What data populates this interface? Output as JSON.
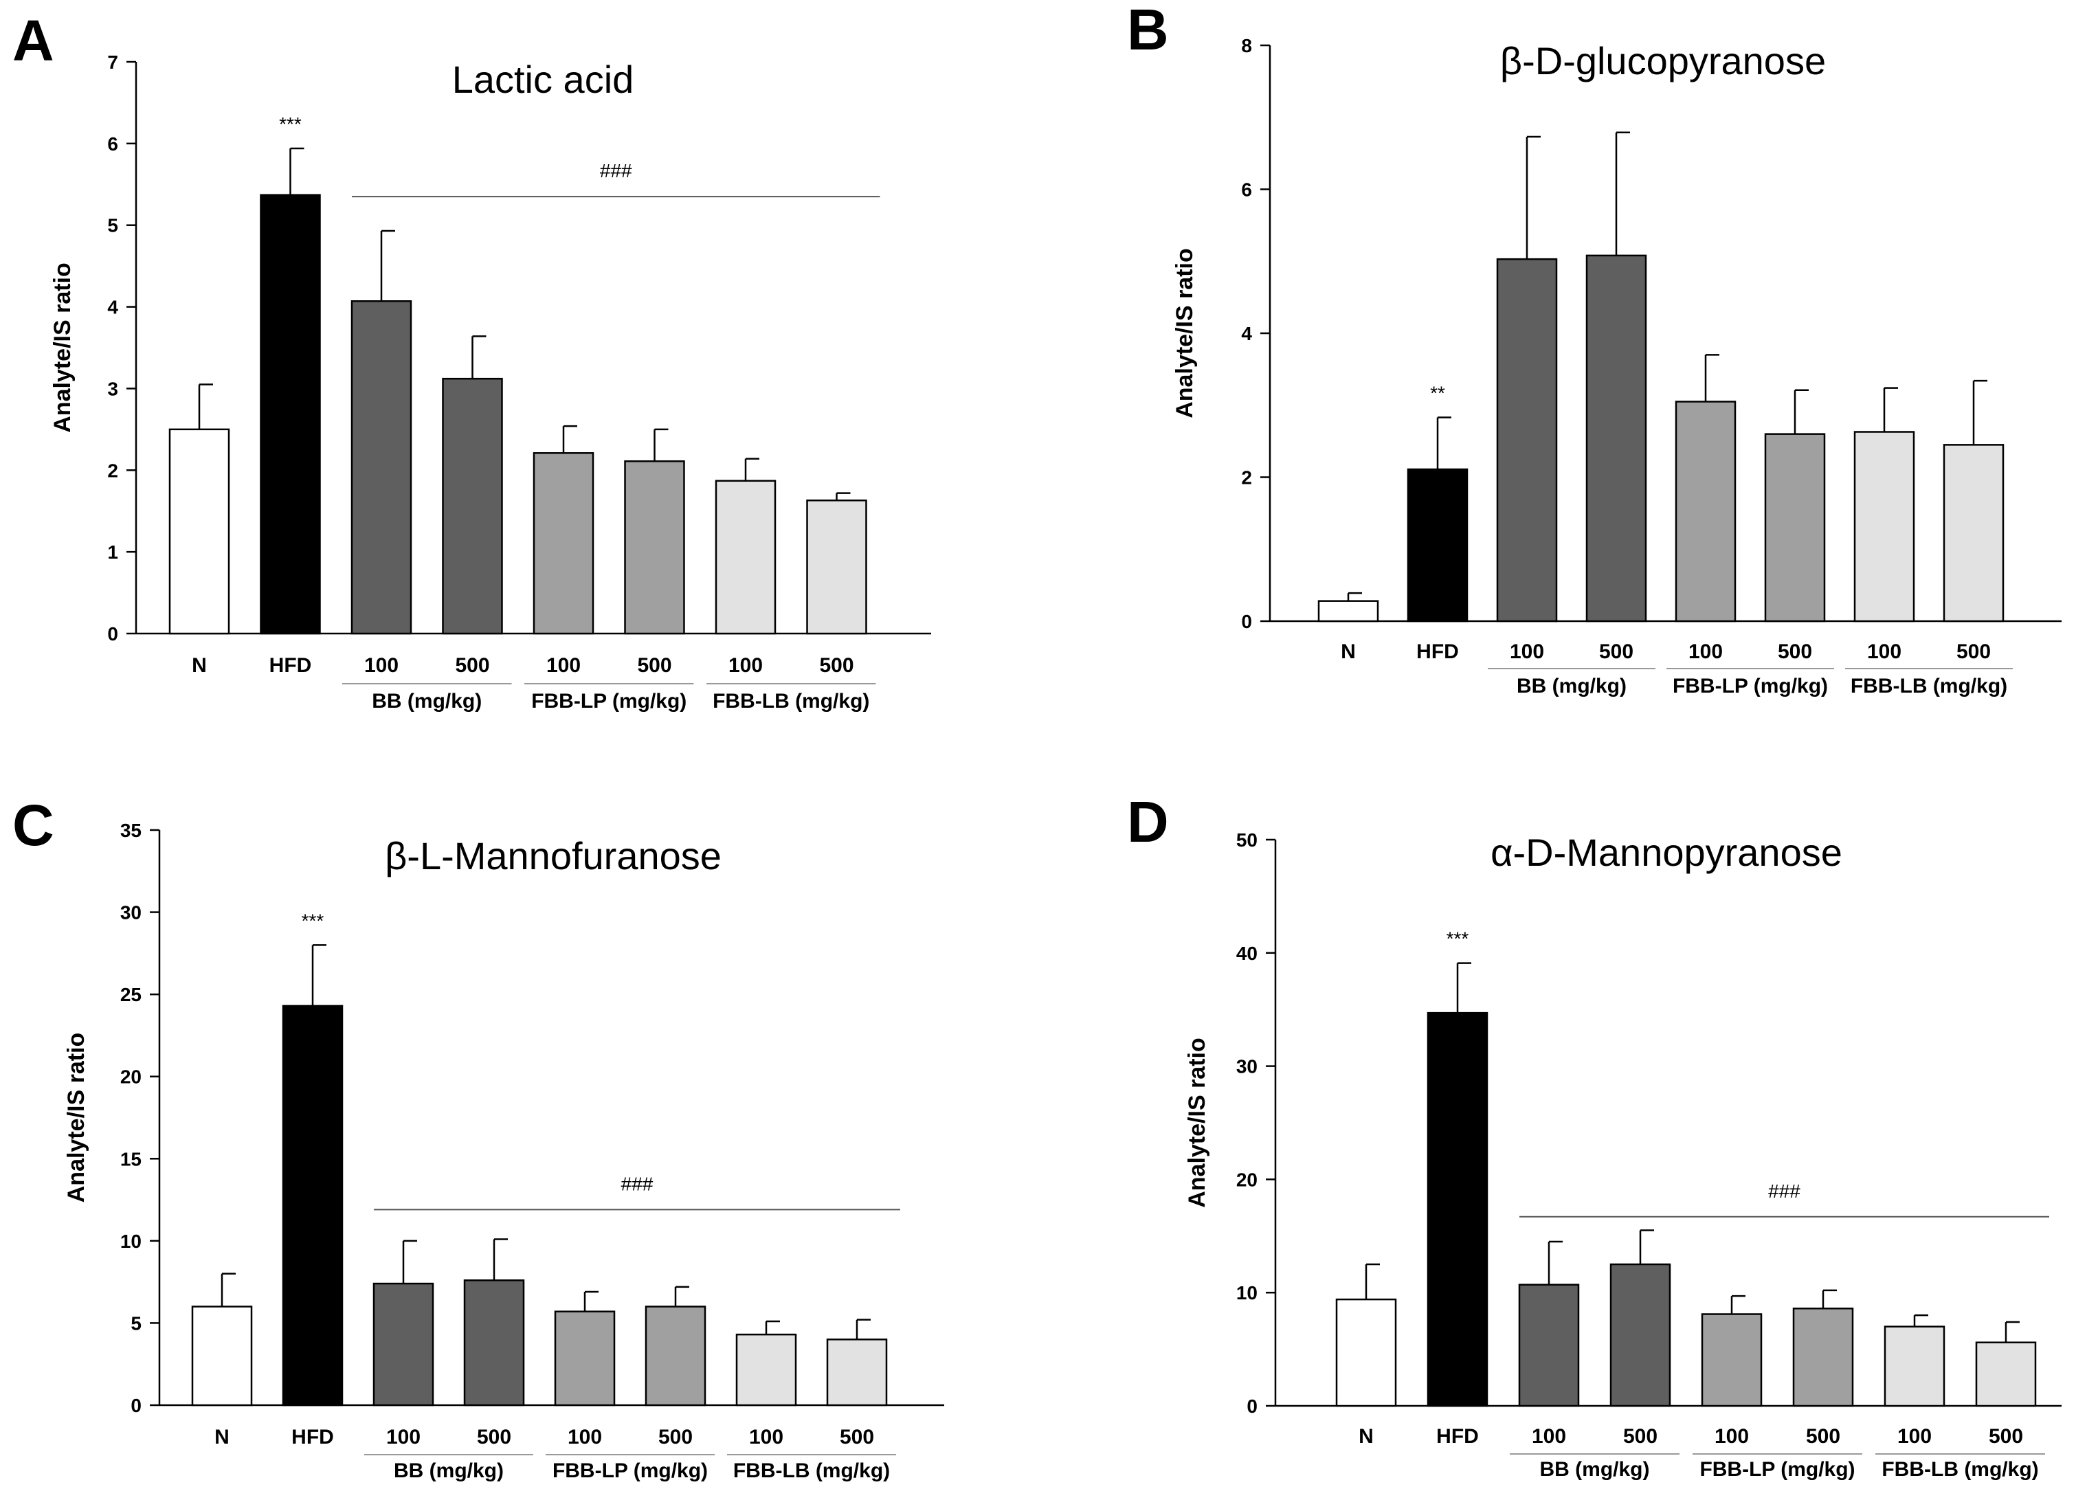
{
  "chart_data": [
    {
      "panel": "A",
      "type": "bar",
      "title": "Lactic acid",
      "ylabel": "Analyte/IS ratio",
      "xlabel": "",
      "ylim": [
        0,
        7
      ],
      "yticks": [
        0,
        1,
        2,
        3,
        4,
        5,
        6,
        7
      ],
      "categories": [
        "N",
        "HFD",
        "100",
        "500",
        "100",
        "500",
        "100",
        "500"
      ],
      "groups": [
        "BB (mg/kg)",
        "FBB-LP (mg/kg)",
        "FBB-LB (mg/kg)"
      ],
      "values": [
        2.5,
        5.37,
        4.07,
        3.12,
        2.21,
        2.11,
        1.87,
        1.63
      ],
      "errors": [
        0.55,
        0.57,
        0.86,
        0.52,
        0.33,
        0.39,
        0.27,
        0.09
      ],
      "colors": [
        "#ffffff",
        "#000000",
        "#5f5f5f",
        "#5f5f5f",
        "#a0a0a0",
        "#a0a0a0",
        "#e2e2e2",
        "#e2e2e2"
      ],
      "annotations": [
        {
          "bar": 1,
          "text": "***"
        }
      ],
      "bracket": {
        "from_bar": 2,
        "to_bar": 7,
        "text": "###",
        "y": 5.35
      }
    },
    {
      "panel": "B",
      "type": "bar",
      "title": "β-D-glucopyranose",
      "ylabel": "Analyte/IS ratio",
      "xlabel": "",
      "ylim": [
        0,
        8
      ],
      "yticks": [
        0,
        2,
        4,
        6,
        8
      ],
      "categories": [
        "N",
        "HFD",
        "100",
        "500",
        "100",
        "500",
        "100",
        "500"
      ],
      "groups": [
        "BB (mg/kg)",
        "FBB-LP (mg/kg)",
        "FBB-LB (mg/kg)"
      ],
      "values": [
        0.28,
        2.11,
        5.03,
        5.08,
        3.05,
        2.6,
        2.63,
        2.45
      ],
      "errors": [
        0.11,
        0.72,
        1.7,
        1.71,
        0.65,
        0.61,
        0.61,
        0.89
      ],
      "colors": [
        "#ffffff",
        "#000000",
        "#5f5f5f",
        "#5f5f5f",
        "#a0a0a0",
        "#a0a0a0",
        "#e2e2e2",
        "#e2e2e2"
      ],
      "annotations": [
        {
          "bar": 1,
          "text": "**"
        }
      ],
      "bracket": null
    },
    {
      "panel": "C",
      "type": "bar",
      "title": "β-L-Mannofuranose",
      "ylabel": "Analyte/IS ratio",
      "xlabel": "",
      "ylim": [
        0,
        35
      ],
      "yticks": [
        0,
        5,
        10,
        15,
        20,
        25,
        30,
        35
      ],
      "categories": [
        "N",
        "HFD",
        "100",
        "500",
        "100",
        "500",
        "100",
        "500"
      ],
      "groups": [
        "BB (mg/kg)",
        "FBB-LP (mg/kg)",
        "FBB-LB (mg/kg)"
      ],
      "values": [
        6.0,
        24.3,
        7.4,
        7.6,
        5.7,
        6.0,
        4.3,
        4.0
      ],
      "errors": [
        2.0,
        3.7,
        2.6,
        2.5,
        1.2,
        1.2,
        0.8,
        1.2
      ],
      "colors": [
        "#ffffff",
        "#000000",
        "#5f5f5f",
        "#5f5f5f",
        "#a0a0a0",
        "#a0a0a0",
        "#e2e2e2",
        "#e2e2e2"
      ],
      "annotations": [
        {
          "bar": 1,
          "text": "***"
        }
      ],
      "bracket": {
        "from_bar": 2,
        "to_bar": 7,
        "text": "###",
        "y": 11.9
      }
    },
    {
      "panel": "D",
      "type": "bar",
      "title": "α-D-Mannopyranose",
      "ylabel": "Analyte/IS ratio",
      "xlabel": "",
      "ylim": [
        0,
        50
      ],
      "yticks": [
        0,
        10,
        20,
        30,
        40,
        50
      ],
      "categories": [
        "N",
        "HFD",
        "100",
        "500",
        "100",
        "500",
        "100",
        "500"
      ],
      "groups": [
        "BB (mg/kg)",
        "FBB-LP (mg/kg)",
        "FBB-LB (mg/kg)"
      ],
      "values": [
        9.4,
        34.7,
        10.7,
        12.5,
        8.1,
        8.6,
        7.0,
        5.6
      ],
      "errors": [
        3.1,
        4.4,
        3.8,
        3.0,
        1.6,
        1.6,
        1.0,
        1.8
      ],
      "colors": [
        "#ffffff",
        "#000000",
        "#5f5f5f",
        "#5f5f5f",
        "#a0a0a0",
        "#a0a0a0",
        "#e2e2e2",
        "#e2e2e2"
      ],
      "annotations": [
        {
          "bar": 1,
          "text": "***"
        }
      ],
      "bracket": {
        "from_bar": 2,
        "to_bar": 7,
        "text": "###",
        "y": 16.7
      }
    }
  ]
}
